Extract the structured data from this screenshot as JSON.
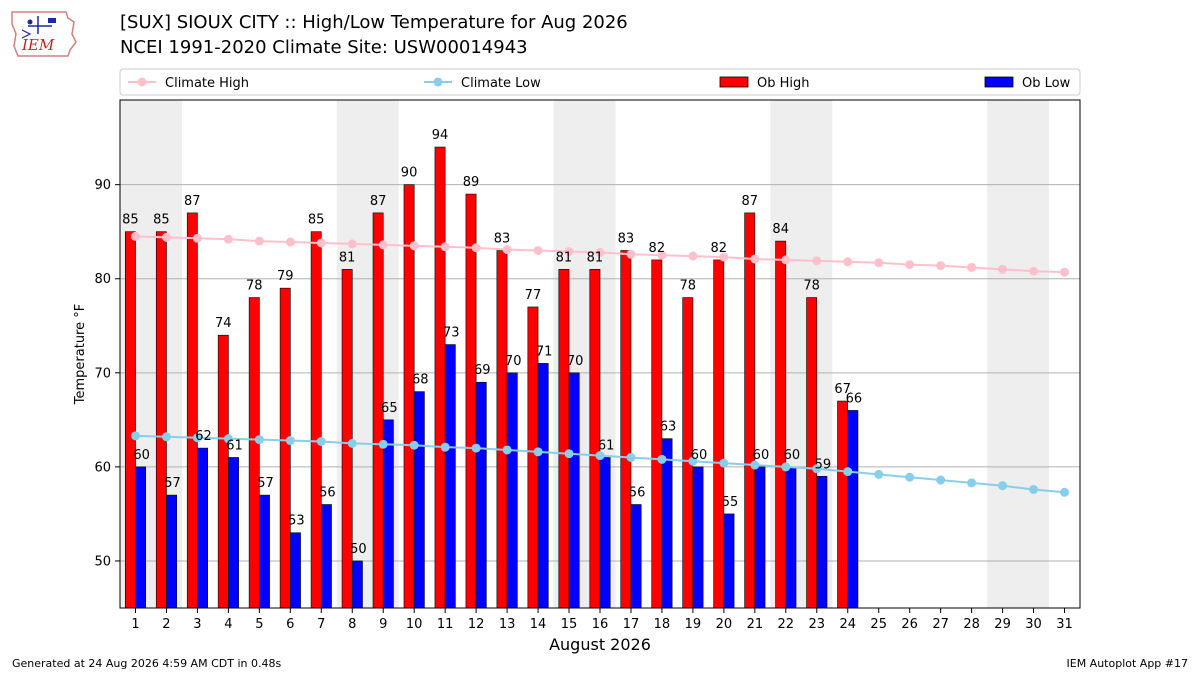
{
  "header": {
    "title": "[SUX] SIOUX CITY :: High/Low Temperature for Aug 2026",
    "subtitle": "NCEI 1991-2020 Climate Site: USW00014943",
    "logo_text": "IEM"
  },
  "footer": {
    "generated": "Generated at 24 Aug 2026 4:59 AM CDT in 0.48s",
    "app": "IEM Autoplot App #17"
  },
  "colors": {
    "ob_high": "#ff0000",
    "ob_low": "#0000ff",
    "climate_high": "#ffc0cb",
    "climate_low": "#87ceeb",
    "weekend_shade": "#eeeeee"
  },
  "chart_data": {
    "type": "bar",
    "xlabel": "August 2026",
    "ylabel": "Temperature °F",
    "ylim": [
      45,
      99
    ],
    "yticks": [
      50,
      60,
      70,
      80,
      90
    ],
    "grid": true,
    "legend_position": "top",
    "shaded_weekends": [
      [
        1,
        2
      ],
      [
        8,
        9
      ],
      [
        15,
        16
      ],
      [
        22,
        23
      ],
      [
        29,
        30
      ]
    ],
    "days": [
      1,
      2,
      3,
      4,
      5,
      6,
      7,
      8,
      9,
      10,
      11,
      12,
      13,
      14,
      15,
      16,
      17,
      18,
      19,
      20,
      21,
      22,
      23,
      24,
      25,
      26,
      27,
      28,
      29,
      30,
      31
    ],
    "series": [
      {
        "name": "Climate High",
        "kind": "line",
        "values": [
          84.5,
          84.4,
          84.3,
          84.2,
          84.0,
          83.9,
          83.8,
          83.7,
          83.6,
          83.5,
          83.4,
          83.3,
          83.1,
          83.0,
          82.9,
          82.8,
          82.6,
          82.5,
          82.4,
          82.3,
          82.1,
          82.0,
          81.9,
          81.8,
          81.7,
          81.5,
          81.4,
          81.2,
          81.0,
          80.8,
          80.7
        ]
      },
      {
        "name": "Climate Low",
        "kind": "line",
        "values": [
          63.3,
          63.2,
          63.1,
          63.0,
          62.9,
          62.8,
          62.7,
          62.5,
          62.4,
          62.3,
          62.1,
          62.0,
          61.8,
          61.6,
          61.4,
          61.2,
          61.0,
          60.8,
          60.6,
          60.4,
          60.2,
          60.0,
          59.8,
          59.5,
          59.2,
          58.9,
          58.6,
          58.3,
          58.0,
          57.6,
          57.3
        ]
      },
      {
        "name": "Ob High",
        "kind": "bar",
        "values": [
          85,
          85,
          87,
          74,
          78,
          79,
          85,
          81,
          87,
          90,
          94,
          89,
          83,
          77,
          81,
          81,
          83,
          82,
          78,
          82,
          87,
          84,
          78,
          67
        ]
      },
      {
        "name": "Ob Low",
        "kind": "bar",
        "values": [
          60,
          57,
          62,
          61,
          57,
          53,
          56,
          50,
          65,
          68,
          73,
          69,
          70,
          71,
          70,
          61,
          56,
          63,
          60,
          55,
          60,
          60,
          59,
          66
        ]
      }
    ]
  }
}
